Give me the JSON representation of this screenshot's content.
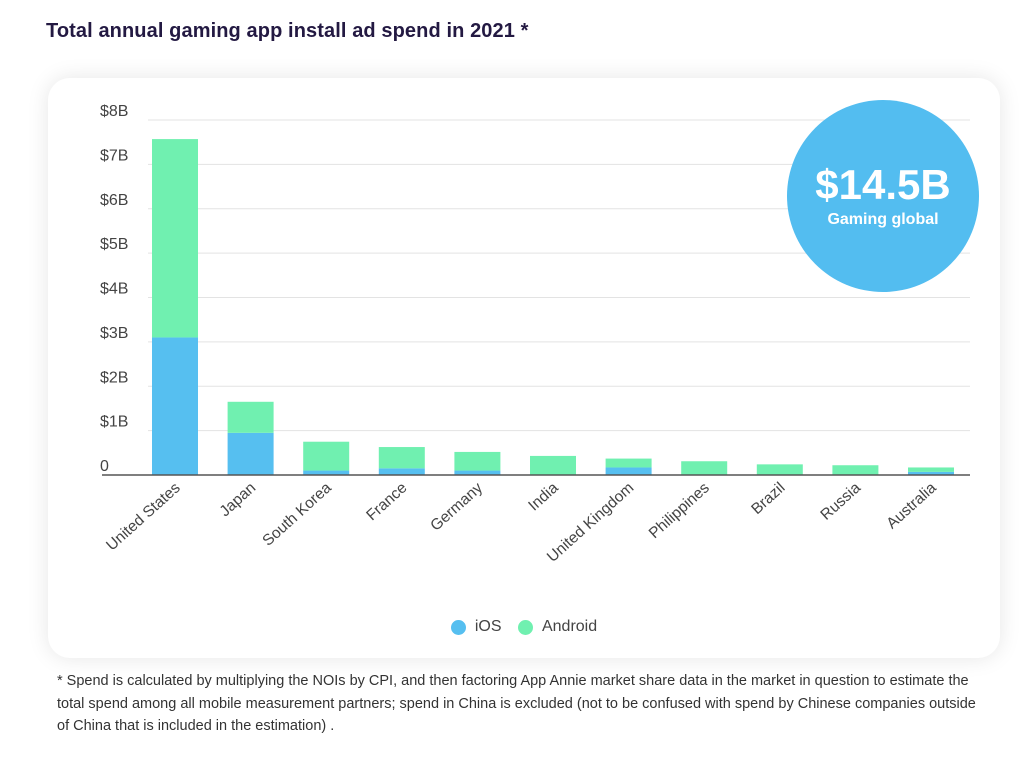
{
  "chart_data": {
    "type": "bar",
    "stacked": true,
    "title": "Total annual gaming app install ad spend in 2021 *",
    "xlabel": "",
    "ylabel": "",
    "ylim": [
      0,
      8
    ],
    "yticks": [
      0,
      1,
      2,
      3,
      4,
      5,
      6,
      7,
      8
    ],
    "ytick_labels": [
      "0",
      "$1B",
      "$2B",
      "$3B",
      "$4B",
      "$5B",
      "$6B",
      "$7B",
      "$8B"
    ],
    "grid": true,
    "legend_position": "bottom-center",
    "categories": [
      "United States",
      "Japan",
      "South Korea",
      "France",
      "Germany",
      "India",
      "United Kingdom",
      "Philippines",
      "Brazil",
      "Russia",
      "Australia"
    ],
    "series": [
      {
        "name": "iOS",
        "color": "#56bff0",
        "values": [
          3.1,
          0.95,
          0.1,
          0.15,
          0.1,
          0.0,
          0.17,
          0.0,
          0.0,
          0.0,
          0.07
        ]
      },
      {
        "name": "Android",
        "color": "#70f0b0",
        "values": [
          4.47,
          0.7,
          0.65,
          0.48,
          0.42,
          0.43,
          0.2,
          0.31,
          0.24,
          0.22,
          0.1
        ]
      }
    ]
  },
  "highlight": {
    "value": "$14.5B",
    "label": "Gaming global",
    "color": "#53bdf0"
  },
  "footnote": "* Spend is calculated by multiplying the NOIs by CPI, and then factoring App Annie market share data in the market in question to estimate the total spend among all mobile measurement partners; spend in China is excluded (not to be confused with spend by Chinese companies outside of China that is included in the estimation) ."
}
